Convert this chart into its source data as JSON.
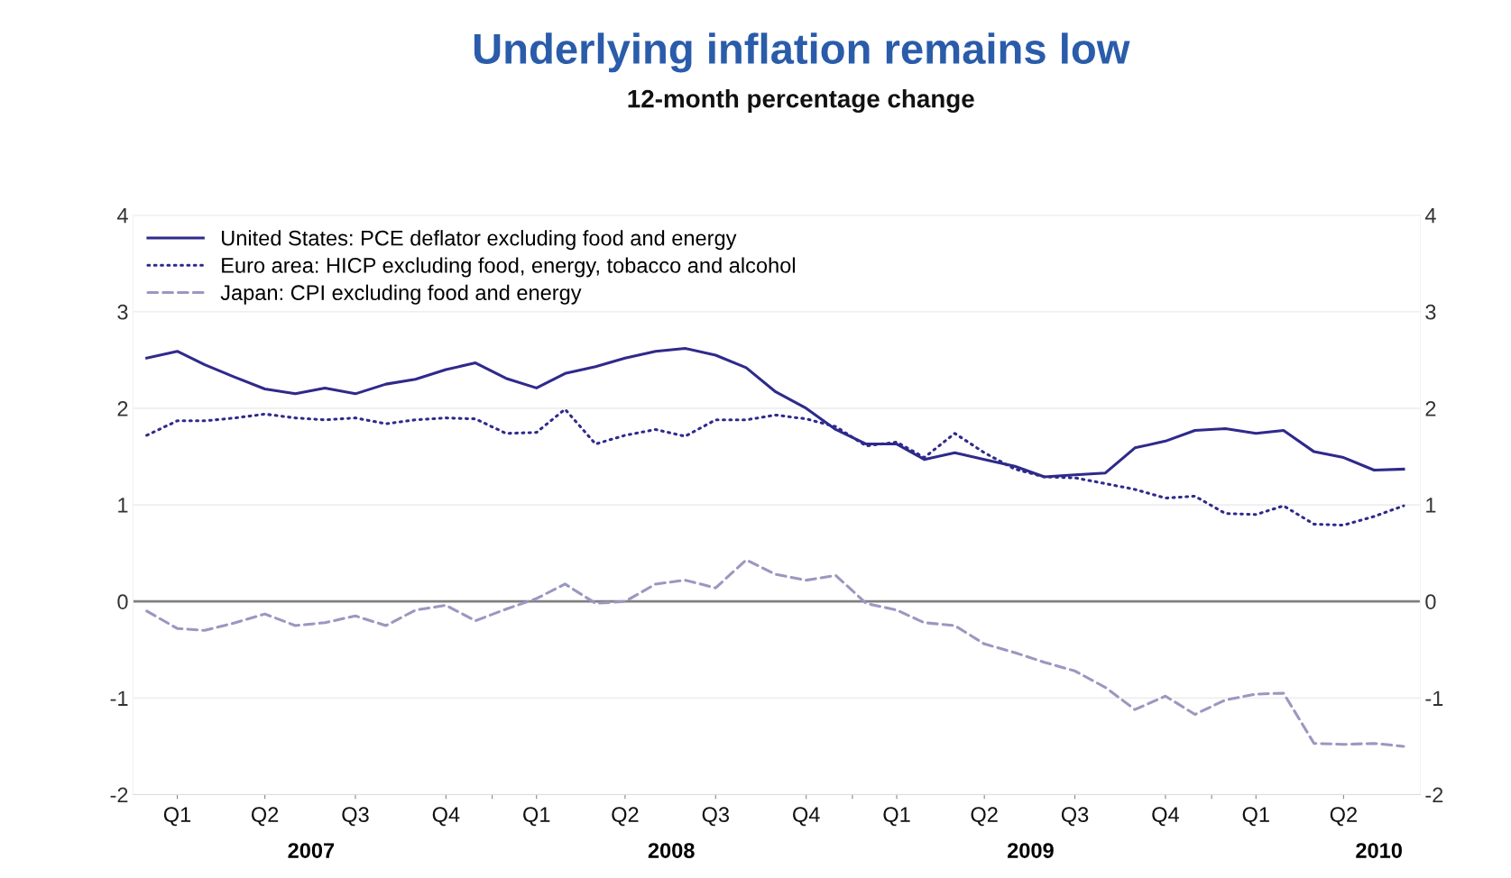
{
  "chart_data": {
    "type": "line",
    "title": "Underlying inflation remains low",
    "subtitle": "12-month percentage change",
    "x": [
      "2007-01-15",
      "2007-02-15",
      "2007-03-15",
      "2007-04-15",
      "2007-05-15",
      "2007-06-15",
      "2007-07-15",
      "2007-08-15",
      "2007-09-15",
      "2007-10-15",
      "2007-11-15",
      "2007-12-15",
      "2008-01-15",
      "2008-02-15",
      "2008-03-15",
      "2008-04-15",
      "2008-05-15",
      "2008-06-15",
      "2008-07-15",
      "2008-08-15",
      "2008-09-15",
      "2008-10-15",
      "2008-11-15",
      "2008-12-15",
      "2009-01-15",
      "2009-02-15",
      "2009-03-15",
      "2009-04-15",
      "2009-05-15",
      "2009-06-15",
      "2009-07-15",
      "2009-08-15",
      "2009-09-15",
      "2009-10-15",
      "2009-11-15",
      "2009-12-15",
      "2010-01-15",
      "2010-02-15",
      "2010-03-15",
      "2010-04-15",
      "2010-05-15",
      "2010-06-15",
      "2010-07-15"
    ],
    "series": [
      {
        "name": "United States: PCE deflator excluding food and energy",
        "color": "#2e2a8c",
        "line_style": "solid",
        "values": [
          2.52,
          2.59,
          2.45,
          2.32,
          2.2,
          2.15,
          2.21,
          2.15,
          2.25,
          2.3,
          2.4,
          2.47,
          2.31,
          2.21,
          2.36,
          2.43,
          2.52,
          2.59,
          2.62,
          2.55,
          2.42,
          2.17,
          2.0,
          1.78,
          1.63,
          1.63,
          1.47,
          1.54,
          1.47,
          1.4,
          1.29,
          1.31,
          1.33,
          1.59,
          1.66,
          1.77,
          1.79,
          1.74,
          1.77,
          1.55,
          1.49,
          1.36,
          1.37
        ]
      },
      {
        "name": "Euro area: HICP excluding food, energy, tobacco and alcohol",
        "color": "#2e2a8c",
        "line_style": "dotted",
        "values": [
          1.72,
          1.87,
          1.87,
          1.9,
          1.94,
          1.9,
          1.88,
          1.9,
          1.84,
          1.88,
          1.9,
          1.89,
          1.74,
          1.75,
          1.99,
          1.63,
          1.72,
          1.78,
          1.71,
          1.88,
          1.88,
          1.93,
          1.89,
          1.81,
          1.61,
          1.65,
          1.49,
          1.74,
          1.54,
          1.37,
          1.29,
          1.28,
          1.22,
          1.16,
          1.07,
          1.09,
          0.91,
          0.9,
          0.99,
          0.8,
          0.79,
          0.88,
          0.99
        ]
      },
      {
        "name": "Japan: CPI excluding food and energy",
        "color": "#9a98c0",
        "line_style": "dashed",
        "values": [
          -0.1,
          -0.28,
          -0.3,
          -0.22,
          -0.13,
          -0.25,
          -0.22,
          -0.15,
          -0.25,
          -0.09,
          -0.04,
          -0.2,
          -0.08,
          0.03,
          0.18,
          -0.02,
          0.0,
          0.18,
          0.22,
          0.14,
          0.43,
          0.28,
          0.22,
          0.27,
          -0.02,
          -0.09,
          -0.22,
          -0.25,
          -0.44,
          -0.53,
          -0.63,
          -0.72,
          -0.89,
          -1.12,
          -0.98,
          -1.17,
          -1.02,
          -0.96,
          -0.95,
          -1.47,
          -1.48,
          -1.47,
          -1.5
        ]
      }
    ],
    "xlim": [
      "2007-01-01",
      "2010-08-01"
    ],
    "xticks": [
      {
        "value": "2007-02-15",
        "label": "Q1"
      },
      {
        "value": "2007-05-15",
        "label": "Q2"
      },
      {
        "value": "2007-08-15",
        "label": "Q3"
      },
      {
        "value": "2007-11-15",
        "label": "Q4"
      },
      {
        "value": "2008-01-01",
        "label": null
      },
      {
        "value": "2008-02-15",
        "label": "Q1"
      },
      {
        "value": "2008-05-15",
        "label": "Q2"
      },
      {
        "value": "2008-08-15",
        "label": "Q3"
      },
      {
        "value": "2008-11-15",
        "label": "Q4"
      },
      {
        "value": "2009-01-01",
        "label": null
      },
      {
        "value": "2009-02-15",
        "label": "Q1"
      },
      {
        "value": "2009-05-15",
        "label": "Q2"
      },
      {
        "value": "2009-08-15",
        "label": "Q3"
      },
      {
        "value": "2009-11-15",
        "label": "Q4"
      },
      {
        "value": "2010-01-01",
        "label": null
      },
      {
        "value": "2010-02-15",
        "label": "Q1"
      },
      {
        "value": "2010-05-15",
        "label": "Q2"
      }
    ],
    "x2lim": [
      "2007-01-01",
      "2010-08-01"
    ],
    "x2ticks": [
      {
        "value": "2007-07-01",
        "label": "2007"
      },
      {
        "value": "2008-07-01",
        "label": "2008"
      },
      {
        "value": "2009-07-01",
        "label": "2009"
      },
      {
        "value": "2010-06-20",
        "label": "2010"
      }
    ],
    "ylim": [
      -2,
      4
    ],
    "yticks": [
      -2,
      -1,
      0,
      1,
      2,
      3,
      4
    ],
    "y2lim": [
      -2,
      4
    ],
    "y2ticks": [
      -2,
      -1,
      0,
      1,
      2,
      3,
      4
    ],
    "ref_lines": [
      {
        "axis": "y",
        "value": 0,
        "color": "#808080"
      }
    ],
    "grid": "y",
    "legend": "top left",
    "marker": "none"
  }
}
